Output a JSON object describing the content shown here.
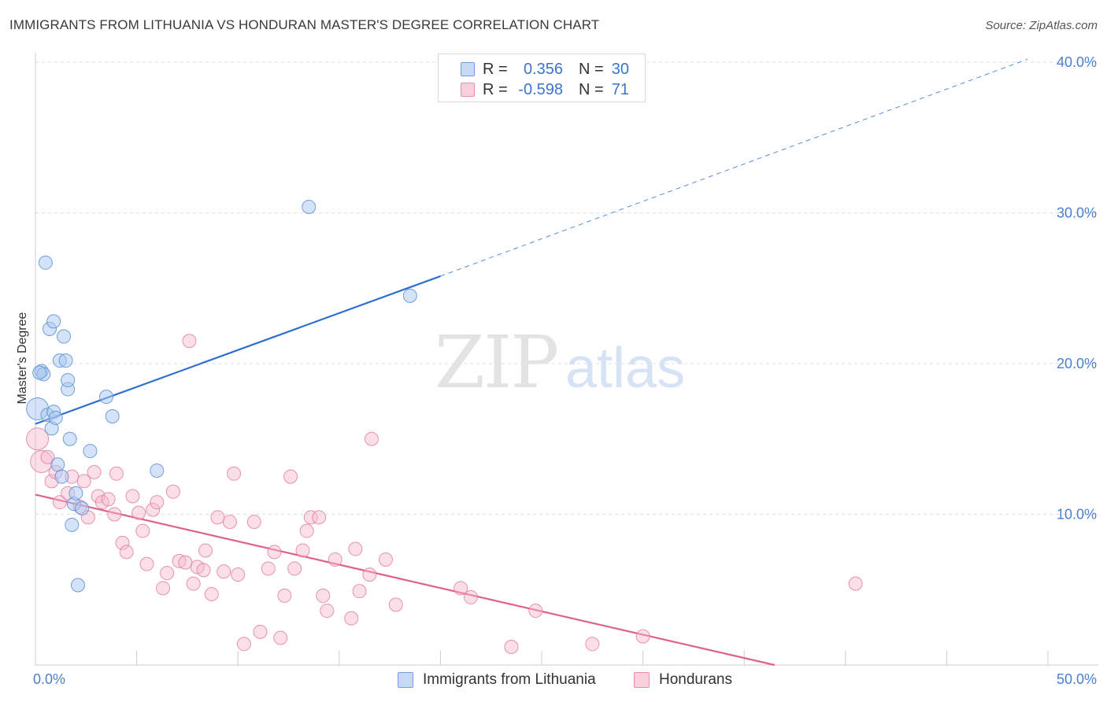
{
  "title": "IMMIGRANTS FROM LITHUANIA VS HONDURAN MASTER'S DEGREE CORRELATION CHART",
  "source": "Source: ZipAtlas.com",
  "watermark": {
    "zip": "ZIP",
    "atlas": "atlas"
  },
  "colors": {
    "blue_fill": "#a9c8f0",
    "blue_stroke": "#5b8fd6",
    "blue_line": "#2f6fd0",
    "pink_fill": "#f6b9cc",
    "pink_stroke": "#e07a9c",
    "pink_line": "#e0608e",
    "tick_text": "#4a7fd0",
    "grid": "#dddddd"
  },
  "legend": {
    "rows": [
      {
        "r_label": "R =",
        "r_value": "0.356",
        "n_label": "N =",
        "n_value": "30"
      },
      {
        "r_label": "R =",
        "r_value": "-0.598",
        "n_label": "N =",
        "n_value": "71"
      }
    ]
  },
  "bottom_legend": [
    {
      "label": "Immigrants from Lithuania"
    },
    {
      "label": "Hondurans"
    }
  ],
  "chart_data": {
    "type": "scatter",
    "title": "IMMIGRANTS FROM LITHUANIA VS HONDURAN MASTER'S DEGREE CORRELATION CHART",
    "xlabel": "",
    "ylabel": "Master's Degree",
    "xlim": [
      0,
      50
    ],
    "ylim": [
      0,
      40
    ],
    "x_tick_labels": {
      "left": "0.0%",
      "right": "50.0%"
    },
    "y_ticks": [
      10,
      20,
      30,
      40
    ],
    "y_tick_labels": [
      "10.0%",
      "20.0%",
      "30.0%",
      "40.0%"
    ],
    "grid": "horizontal dashed",
    "legend_position": "top-center",
    "series": [
      {
        "name": "Immigrants from Lithuania",
        "points": [
          [
            0.1,
            17.0
          ],
          [
            0.3,
            19.5
          ],
          [
            0.4,
            19.3
          ],
          [
            0.5,
            26.7
          ],
          [
            0.6,
            16.6
          ],
          [
            0.7,
            22.3
          ],
          [
            0.8,
            15.7
          ],
          [
            0.9,
            16.8
          ],
          [
            0.9,
            22.8
          ],
          [
            1.0,
            16.4
          ],
          [
            1.1,
            13.3
          ],
          [
            1.2,
            20.2
          ],
          [
            1.3,
            12.5
          ],
          [
            1.4,
            21.8
          ],
          [
            1.5,
            20.2
          ],
          [
            1.6,
            18.3
          ],
          [
            1.6,
            18.9
          ],
          [
            1.7,
            15.0
          ],
          [
            1.8,
            9.3
          ],
          [
            1.9,
            10.7
          ],
          [
            2.0,
            11.4
          ],
          [
            2.1,
            5.3
          ],
          [
            2.3,
            10.4
          ],
          [
            2.7,
            14.2
          ],
          [
            3.5,
            17.8
          ],
          [
            3.8,
            16.5
          ],
          [
            6.0,
            12.9
          ],
          [
            13.5,
            30.4
          ],
          [
            18.5,
            24.5
          ],
          [
            0.2,
            19.4
          ]
        ],
        "trend": {
          "x0": 0,
          "y0": 16.0,
          "x1": 20.0,
          "y1": 25.8,
          "dashed_to_x": 49.0,
          "dashed_to_y": 40.2
        }
      },
      {
        "name": "Hondurans",
        "points": [
          [
            0.1,
            15.0
          ],
          [
            0.3,
            13.5
          ],
          [
            0.6,
            13.8
          ],
          [
            0.8,
            12.2
          ],
          [
            1.0,
            12.8
          ],
          [
            1.2,
            10.8
          ],
          [
            1.6,
            11.4
          ],
          [
            1.8,
            12.5
          ],
          [
            2.2,
            10.5
          ],
          [
            2.4,
            12.2
          ],
          [
            2.6,
            9.8
          ],
          [
            2.9,
            12.8
          ],
          [
            3.1,
            11.2
          ],
          [
            3.3,
            10.8
          ],
          [
            3.6,
            11.0
          ],
          [
            3.9,
            10.0
          ],
          [
            4.0,
            12.7
          ],
          [
            4.3,
            8.1
          ],
          [
            4.5,
            7.5
          ],
          [
            4.8,
            11.2
          ],
          [
            5.1,
            10.1
          ],
          [
            5.3,
            8.9
          ],
          [
            5.5,
            6.7
          ],
          [
            5.8,
            10.3
          ],
          [
            6.0,
            10.8
          ],
          [
            6.3,
            5.1
          ],
          [
            6.5,
            6.1
          ],
          [
            6.8,
            11.5
          ],
          [
            7.1,
            6.9
          ],
          [
            7.4,
            6.8
          ],
          [
            7.6,
            21.5
          ],
          [
            7.8,
            5.4
          ],
          [
            8.0,
            6.5
          ],
          [
            8.3,
            6.3
          ],
          [
            8.4,
            7.6
          ],
          [
            8.7,
            4.7
          ],
          [
            9.0,
            9.8
          ],
          [
            9.3,
            6.2
          ],
          [
            9.6,
            9.5
          ],
          [
            9.8,
            12.7
          ],
          [
            10.0,
            6.0
          ],
          [
            10.3,
            1.4
          ],
          [
            10.8,
            9.5
          ],
          [
            11.1,
            2.2
          ],
          [
            11.5,
            6.4
          ],
          [
            11.8,
            7.5
          ],
          [
            12.1,
            1.8
          ],
          [
            12.3,
            4.6
          ],
          [
            12.6,
            12.5
          ],
          [
            12.8,
            6.4
          ],
          [
            13.2,
            7.6
          ],
          [
            13.4,
            8.9
          ],
          [
            13.6,
            9.8
          ],
          [
            14.0,
            9.8
          ],
          [
            14.2,
            4.6
          ],
          [
            14.4,
            3.6
          ],
          [
            14.8,
            7.0
          ],
          [
            15.6,
            3.1
          ],
          [
            15.8,
            7.7
          ],
          [
            16.0,
            4.9
          ],
          [
            16.5,
            6.0
          ],
          [
            16.6,
            15.0
          ],
          [
            17.3,
            7.0
          ],
          [
            17.8,
            4.0
          ],
          [
            21.0,
            5.1
          ],
          [
            21.5,
            4.5
          ],
          [
            23.5,
            1.2
          ],
          [
            24.7,
            3.6
          ],
          [
            27.5,
            1.4
          ],
          [
            30.0,
            1.9
          ],
          [
            40.5,
            5.4
          ]
        ],
        "trend": {
          "x0": 0,
          "y0": 11.3,
          "x1": 36.5,
          "y1": 0.0
        }
      }
    ]
  }
}
